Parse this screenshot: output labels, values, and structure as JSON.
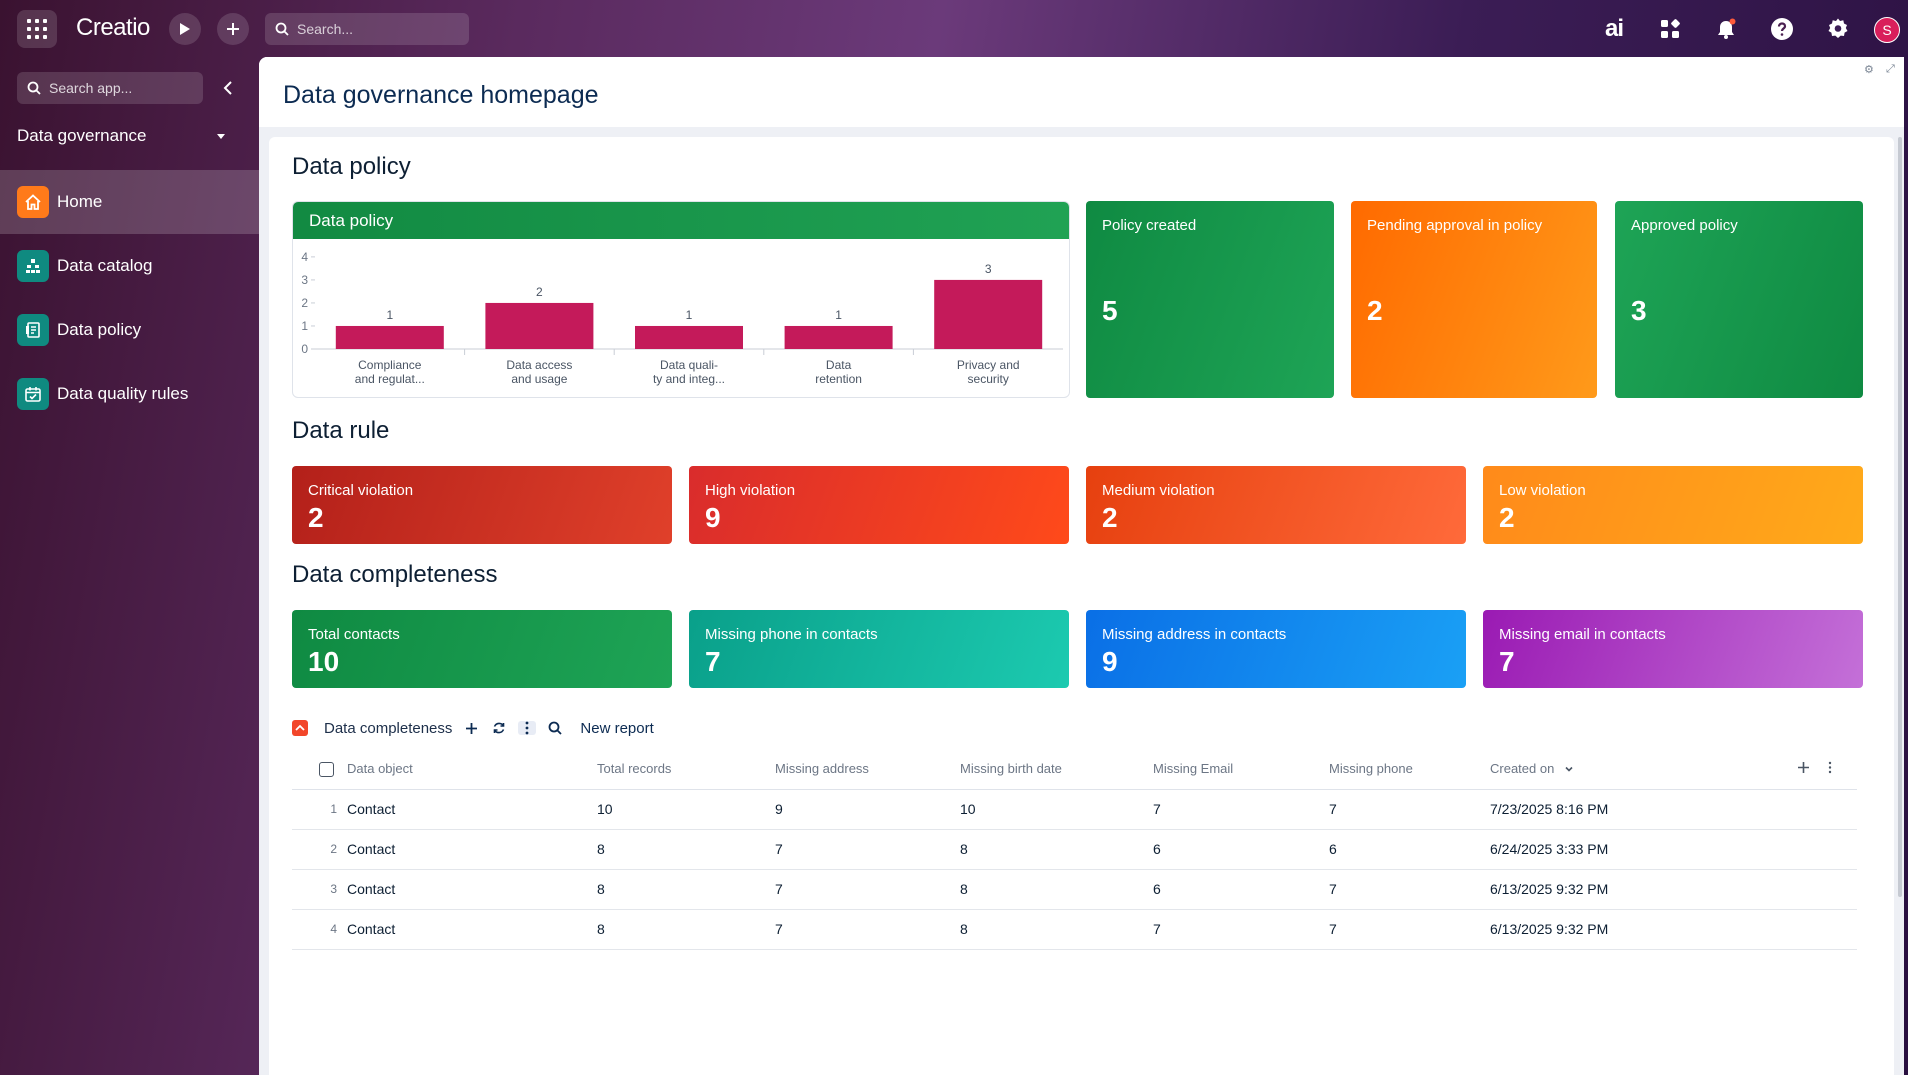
{
  "topbar": {
    "logo": "Creatio",
    "search_placeholder": "Search...",
    "ai_label": "ai",
    "avatar_initial": "S"
  },
  "sidebar": {
    "search_placeholder": "Search app...",
    "workspace": "Data governance",
    "items": [
      {
        "label": "Home",
        "icon": "home-icon",
        "color": "#ff7a1a",
        "active": true
      },
      {
        "label": "Data catalog",
        "icon": "catalog-icon",
        "color": "#0f8a80"
      },
      {
        "label": "Data policy",
        "icon": "policy-icon",
        "color": "#0f8a80"
      },
      {
        "label": "Data quality rules",
        "icon": "calendar-icon",
        "color": "#0f8a80"
      }
    ]
  },
  "page": {
    "title": "Data governance homepage"
  },
  "sections": {
    "policy": "Data policy",
    "rule": "Data rule",
    "completeness": "Data completeness"
  },
  "chart_card": {
    "title": "Data policy"
  },
  "chart_data": {
    "type": "bar",
    "categories": [
      "Compliance and regulat...",
      "Data access and usage",
      "Data quality and integ...",
      "Data retention",
      "Privacy and security"
    ],
    "category_lines": [
      [
        "Compliance",
        "and regulat..."
      ],
      [
        "Data access",
        "and usage"
      ],
      [
        "Data quali-",
        "ty and integ..."
      ],
      [
        "Data",
        "retention"
      ],
      [
        "Privacy and",
        "security"
      ]
    ],
    "values": [
      1,
      2,
      1,
      1,
      3
    ],
    "yticks": [
      0,
      1,
      2,
      3,
      4
    ],
    "ylim": [
      0,
      4
    ],
    "color": "#c41a5a",
    "title": "Data policy"
  },
  "policy_tiles": [
    {
      "label": "Policy created",
      "value": "5",
      "gradient": [
        "#0f8a42",
        "#1ea456"
      ]
    },
    {
      "label": "Pending approval in policy",
      "value": "2",
      "gradient": [
        "#ff6a00",
        "#ff9a1a"
      ]
    },
    {
      "label": "Approved policy",
      "value": "3",
      "gradient": [
        "#1ea456",
        "#0f8a42"
      ]
    }
  ],
  "rule_tiles": [
    {
      "label": "Critical violation",
      "value": "2",
      "gradient": [
        "#b3201a",
        "#e0402a"
      ]
    },
    {
      "label": "High violation",
      "value": "9",
      "gradient": [
        "#d92c2c",
        "#ff4a1a"
      ]
    },
    {
      "label": "Medium violation",
      "value": "2",
      "gradient": [
        "#e6400f",
        "#ff6a3a"
      ]
    },
    {
      "label": "Low violation",
      "value": "2",
      "gradient": [
        "#ff8a1a",
        "#ffaa1a"
      ]
    }
  ],
  "completeness_tiles": [
    {
      "label": "Total contacts",
      "value": "10",
      "gradient": [
        "#0f8a42",
        "#1ea456"
      ]
    },
    {
      "label": "Missing phone in contacts",
      "value": "7",
      "gradient": [
        "#0aa08a",
        "#1ccab0"
      ]
    },
    {
      "label": "Missing address in contacts",
      "value": "9",
      "gradient": [
        "#0a6fe6",
        "#1aa0f5"
      ]
    },
    {
      "label": "Missing email in contacts",
      "value": "7",
      "gradient": [
        "#9a1ab3",
        "#c470d8"
      ]
    }
  ],
  "report": {
    "name": "Data completeness",
    "new_report": "New report",
    "columns": [
      "Data object",
      "Total records",
      "Missing address",
      "Missing birth date",
      "Missing Email",
      "Missing phone",
      "Created on"
    ],
    "rows": [
      {
        "num": "1",
        "cells": [
          "Contact",
          "10",
          "9",
          "10",
          "7",
          "7",
          "7/23/2025 8:16 PM"
        ]
      },
      {
        "num": "2",
        "cells": [
          "Contact",
          "8",
          "7",
          "8",
          "6",
          "6",
          "6/24/2025 3:33 PM"
        ]
      },
      {
        "num": "3",
        "cells": [
          "Contact",
          "8",
          "7",
          "8",
          "6",
          "7",
          "6/13/2025 9:32 PM"
        ]
      },
      {
        "num": "4",
        "cells": [
          "Contact",
          "8",
          "7",
          "8",
          "7",
          "7",
          "6/13/2025 9:32 PM"
        ]
      }
    ]
  }
}
